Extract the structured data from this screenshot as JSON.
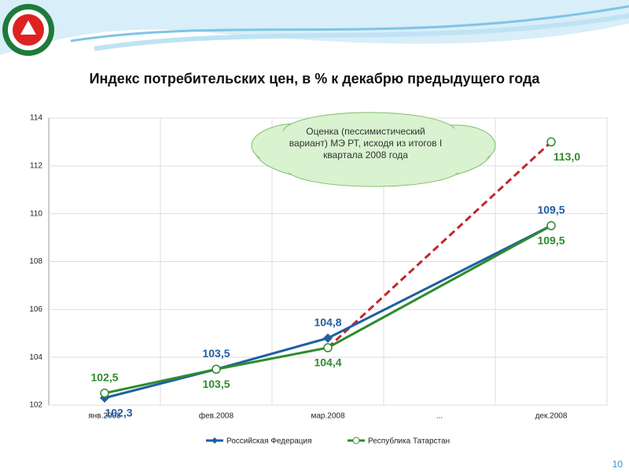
{
  "chart_data": {
    "type": "line",
    "title": "Индекс потребительских цен, в % к декабрю предыдущего года",
    "categories": [
      "янв.2008",
      "фев.2008",
      "мар.2008",
      "...",
      "дек.2008"
    ],
    "series": [
      {
        "name": "Российская Федерация",
        "color": "#1f5fa0",
        "marker": "diamond",
        "values": [
          102.3,
          103.5,
          104.8,
          null,
          109.5
        ],
        "value_labels": [
          "102,3",
          "103,5",
          "104,8",
          null,
          "109,5"
        ]
      },
      {
        "name": "Республика Татарстан",
        "color": "#2e8b2e",
        "marker": "circle",
        "values": [
          102.5,
          103.5,
          104.4,
          null,
          109.5
        ],
        "value_labels": [
          "102,5",
          "103,5",
          "104,4",
          null,
          "109,5"
        ]
      }
    ],
    "forecast": {
      "color": "#c0282d",
      "values": [
        null,
        null,
        104.4,
        null,
        113.0
      ],
      "value_labels": [
        null,
        null,
        null,
        null,
        "113,0"
      ]
    },
    "span_gaps": true,
    "annotation": "Оценка (пессимистический вариант) МЭ РТ, исходя из итогов  I квартала 2008 года",
    "ylim": [
      102,
      114
    ],
    "yticks": [
      102,
      104,
      106,
      108,
      110,
      112,
      114
    ],
    "grid": true,
    "legend": "bottom"
  },
  "page_number": "10"
}
